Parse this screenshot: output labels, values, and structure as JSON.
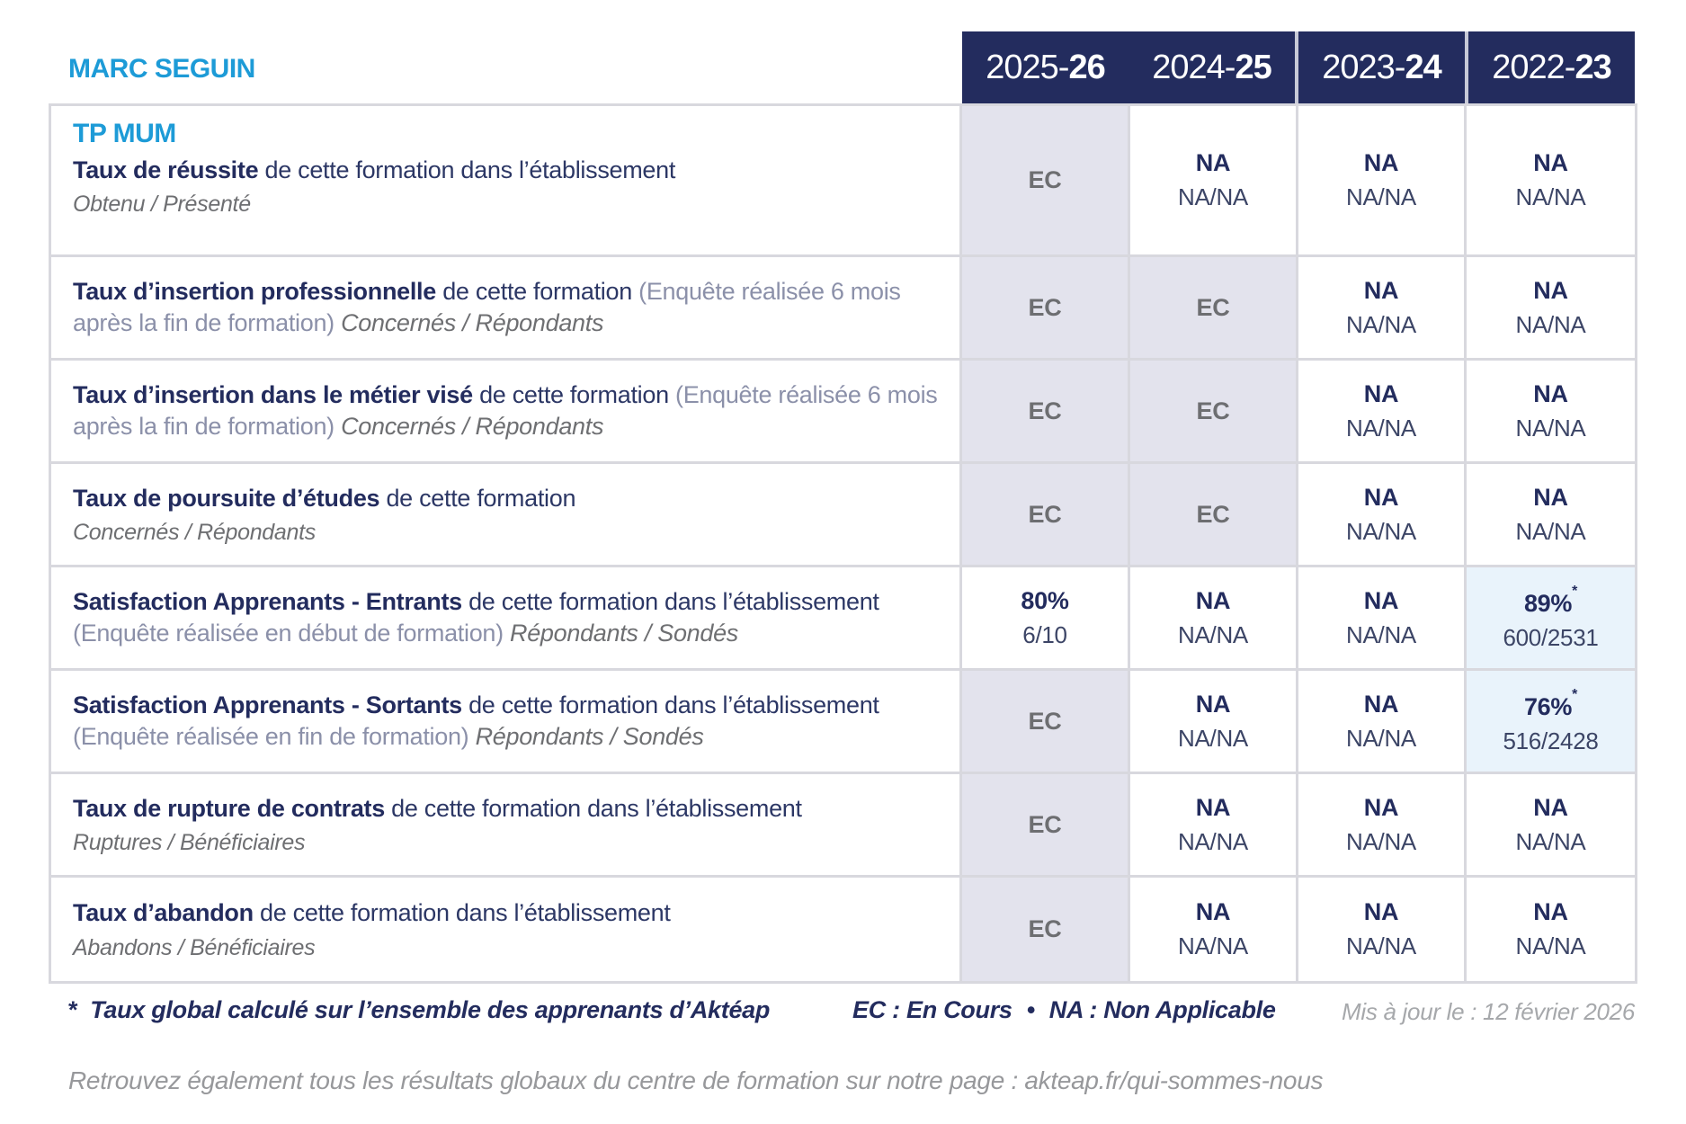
{
  "colors": {
    "accent_blue": "#1d9bd7",
    "navy": "#232c5e",
    "header_background": "#232c5e",
    "ec_cell_background": "#e3e3ed",
    "highlight_cell_background": "#e9f3fb",
    "border_gray": "#d8d8de",
    "ec_text_gray": "#6d6e71",
    "muted_gray": "#a6a8ab"
  },
  "header": {
    "school_name": "MARC SEGUIN",
    "year_columns": [
      "2025-26",
      "2024-25",
      "2023-24",
      "2022-23"
    ]
  },
  "table": {
    "rows": [
      {
        "course_title": "TP MUM",
        "label_bold": "Taux de réussite",
        "label_normal": "de cette formation dans l’établissement",
        "label_paren": "",
        "label_inline_italic": "",
        "label_subline": "Obtenu / Présenté",
        "cells": [
          {
            "kind": "ec",
            "main": "EC"
          },
          {
            "kind": "na",
            "main": "NA",
            "sub": "NA/NA"
          },
          {
            "kind": "na",
            "main": "NA",
            "sub": "NA/NA"
          },
          {
            "kind": "na",
            "main": "NA",
            "sub": "NA/NA"
          }
        ]
      },
      {
        "course_title": "",
        "label_bold": "Taux d’insertion professionnelle",
        "label_normal": "de cette formation",
        "label_paren": "(Enquête réalisée 6 mois après la fin de formation)",
        "label_inline_italic": "Concernés / Répondants",
        "label_subline": "",
        "cells": [
          {
            "kind": "ec",
            "main": "EC"
          },
          {
            "kind": "ec",
            "main": "EC"
          },
          {
            "kind": "na",
            "main": "NA",
            "sub": "NA/NA"
          },
          {
            "kind": "na",
            "main": "NA",
            "sub": "NA/NA"
          }
        ]
      },
      {
        "course_title": "",
        "label_bold": "Taux d’insertion dans le métier visé",
        "label_normal": "de cette formation",
        "label_paren": "(Enquête réalisée 6 mois après la fin de formation)",
        "label_inline_italic": "Concernés / Répondants",
        "label_subline": "",
        "cells": [
          {
            "kind": "ec",
            "main": "EC"
          },
          {
            "kind": "ec",
            "main": "EC"
          },
          {
            "kind": "na",
            "main": "NA",
            "sub": "NA/NA"
          },
          {
            "kind": "na",
            "main": "NA",
            "sub": "NA/NA"
          }
        ]
      },
      {
        "course_title": "",
        "label_bold": "Taux de poursuite d’études",
        "label_normal": "de cette formation",
        "label_paren": "",
        "label_inline_italic": "",
        "label_subline": "Concernés / Répondants",
        "cells": [
          {
            "kind": "ec",
            "main": "EC"
          },
          {
            "kind": "ec",
            "main": "EC"
          },
          {
            "kind": "na",
            "main": "NA",
            "sub": "NA/NA"
          },
          {
            "kind": "na",
            "main": "NA",
            "sub": "NA/NA"
          }
        ]
      },
      {
        "course_title": "",
        "label_bold": "Satisfaction Apprenants - Entrants",
        "label_normal": "de cette formation dans l’établissement",
        "label_paren": "(Enquête réalisée en début de formation)",
        "label_inline_italic": "Répondants / Sondés",
        "label_subline": "",
        "cells": [
          {
            "kind": "value",
            "main": "80%",
            "sub": "6/10",
            "star": false,
            "highlight": false
          },
          {
            "kind": "na",
            "main": "NA",
            "sub": "NA/NA"
          },
          {
            "kind": "na",
            "main": "NA",
            "sub": "NA/NA"
          },
          {
            "kind": "value",
            "main": "89%",
            "sub": "600/2531",
            "star": true,
            "highlight": true
          }
        ]
      },
      {
        "course_title": "",
        "label_bold": "Satisfaction Apprenants - Sortants",
        "label_normal": "de cette formation dans l’établissement",
        "label_paren": "(Enquête réalisée en fin de formation)",
        "label_inline_italic": "Répondants / Sondés",
        "label_subline": "",
        "cells": [
          {
            "kind": "ec",
            "main": "EC"
          },
          {
            "kind": "na",
            "main": "NA",
            "sub": "NA/NA"
          },
          {
            "kind": "na",
            "main": "NA",
            "sub": "NA/NA"
          },
          {
            "kind": "value",
            "main": "76%",
            "sub": "516/2428",
            "star": true,
            "highlight": true
          }
        ]
      },
      {
        "course_title": "",
        "label_bold": "Taux de rupture de contrats",
        "label_normal": "de cette formation dans l’établissement",
        "label_paren": "",
        "label_inline_italic": "",
        "label_subline": "Ruptures / Bénéficiaires",
        "cells": [
          {
            "kind": "ec",
            "main": "EC"
          },
          {
            "kind": "na",
            "main": "NA",
            "sub": "NA/NA"
          },
          {
            "kind": "na",
            "main": "NA",
            "sub": "NA/NA"
          },
          {
            "kind": "na",
            "main": "NA",
            "sub": "NA/NA"
          }
        ]
      },
      {
        "course_title": "",
        "label_bold": "Taux d’abandon",
        "label_normal": "de cette formation dans l’établissement",
        "label_paren": "",
        "label_inline_italic": "",
        "label_subline": "Abandons / Bénéficiaires",
        "cells": [
          {
            "kind": "ec",
            "main": "EC"
          },
          {
            "kind": "na",
            "main": "NA",
            "sub": "NA/NA"
          },
          {
            "kind": "na",
            "main": "NA",
            "sub": "NA/NA"
          },
          {
            "kind": "na",
            "main": "NA",
            "sub": "NA/NA"
          }
        ]
      }
    ]
  },
  "footer": {
    "footnote_star": "*",
    "footnote_text": "Taux global calculé sur l’ensemble des apprenants d’Aktéap",
    "legend_ec": "EC : En Cours",
    "legend_separator": "•",
    "legend_na": "NA : Non Applicable",
    "updated_text": "Mis à jour le : 12 février 2026",
    "bottom_note": "Retrouvez également tous les résultats globaux du centre de formation sur notre page : akteap.fr/qui-sommes-nous"
  }
}
